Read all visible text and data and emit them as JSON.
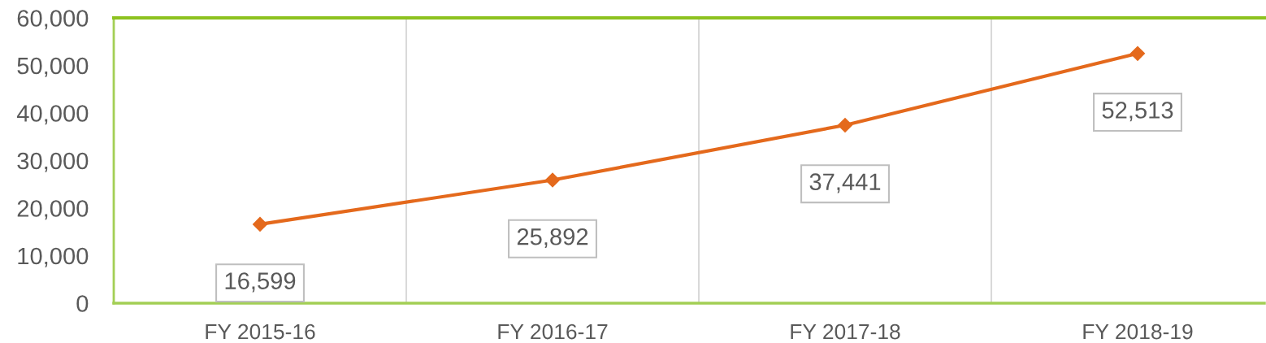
{
  "chart_data": {
    "type": "line",
    "categories": [
      "FY 2015-16",
      "FY 2016-17",
      "FY 2017-18",
      "FY 2018-19"
    ],
    "series": [
      {
        "color": "#e4691c",
        "values": [
          16599,
          25892,
          37441,
          52513
        ],
        "value_labels": [
          "16,599",
          "25,892",
          "37,441",
          "52,513"
        ]
      }
    ],
    "ylim": [
      0,
      60000
    ],
    "yticks": [
      0,
      {
        "value": 10000,
        "label": "10,000"
      },
      {
        "value": 20000,
        "label": "20,000"
      },
      {
        "value": 30000,
        "label": "30,000"
      },
      {
        "value": 40000,
        "label": "40,000"
      },
      {
        "value": 50000,
        "label": "50,000"
      },
      {
        "value": 60000,
        "label": "60,000"
      }
    ],
    "grid": "x",
    "marker": "diamond",
    "line_style": "solid"
  }
}
